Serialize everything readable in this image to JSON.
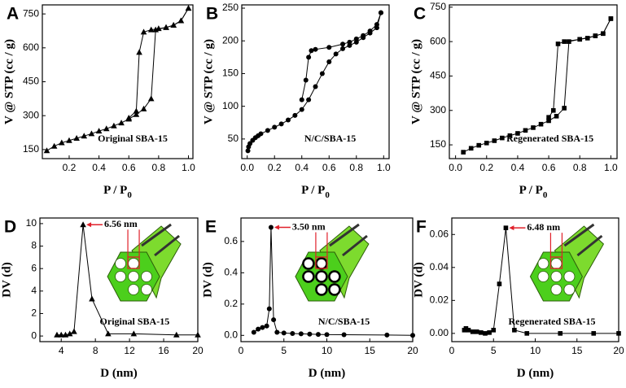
{
  "chart_data": [
    {
      "type": "line",
      "label": "A",
      "ylabel": "V @ STP (cc / g)",
      "xlabel": "P / P",
      "xlabel_sub": "0",
      "annotation": "Original SBA-15",
      "marker": "triangle",
      "xlim": [
        0.02,
        1.03
      ],
      "ylim": [
        110,
        790
      ],
      "xticks": [
        0.2,
        0.4,
        0.6,
        0.8,
        {
          "value": 1,
          "label": "1.0"
        }
      ],
      "yticks": [
        150,
        300,
        450,
        600,
        750
      ],
      "series": [
        {
          "color": "#000000",
          "x": [
            0.05,
            0.1,
            0.15,
            0.2,
            0.25,
            0.3,
            0.35,
            0.4,
            0.45,
            0.5,
            0.55,
            0.6,
            0.65,
            0.7,
            0.75,
            0.78,
            0.85,
            0.9,
            0.95,
            1.0
          ],
          "values": [
            145,
            165,
            180,
            190,
            200,
            210,
            220,
            232,
            242,
            255,
            268,
            285,
            305,
            330,
            375,
            680,
            690,
            700,
            720,
            775
          ]
        },
        {
          "color": "#000000",
          "x": [
            1.0,
            0.95,
            0.9,
            0.85,
            0.8,
            0.75,
            0.7,
            0.67,
            0.65,
            0.6
          ],
          "values": [
            775,
            720,
            700,
            690,
            685,
            680,
            670,
            580,
            320,
            290
          ]
        }
      ]
    },
    {
      "type": "line",
      "label": "B",
      "ylabel": "V @ STP (cc / g)",
      "xlabel": "P / P",
      "xlabel_sub": "0",
      "annotation": "N/C/SBA-15",
      "marker": "circle",
      "xlim": [
        -0.04,
        1.04
      ],
      "ylim": [
        20,
        255
      ],
      "xticks": [
        {
          "value": 0,
          "label": "0.0"
        },
        0.2,
        0.4,
        0.6,
        0.8,
        {
          "value": 1,
          "label": "1.0"
        }
      ],
      "yticks": [
        50,
        100,
        150,
        200,
        250
      ],
      "series": [
        {
          "color": "#000000",
          "x": [
            0.005,
            0.01,
            0.02,
            0.04,
            0.06,
            0.08,
            0.1,
            0.15,
            0.2,
            0.25,
            0.3,
            0.35,
            0.4,
            0.45,
            0.5,
            0.55,
            0.6,
            0.65,
            0.7,
            0.75,
            0.8,
            0.85,
            0.9,
            0.95,
            0.98
          ],
          "values": [
            32,
            38,
            43,
            48,
            52,
            55,
            58,
            63,
            68,
            73,
            79,
            86,
            95,
            110,
            130,
            150,
            168,
            180,
            188,
            193,
            198,
            205,
            212,
            220,
            243
          ]
        },
        {
          "color": "#000000",
          "x": [
            0.98,
            0.95,
            0.9,
            0.85,
            0.8,
            0.75,
            0.7,
            0.6,
            0.5,
            0.47,
            0.45,
            0.43,
            0.4
          ],
          "values": [
            243,
            225,
            215,
            208,
            203,
            198,
            195,
            190,
            187,
            185,
            175,
            140,
            110
          ]
        }
      ]
    },
    {
      "type": "line",
      "label": "C",
      "ylabel": "V @ STP (cc / g)",
      "xlabel": "P / P",
      "xlabel_sub": "0",
      "annotation": "Regenerated SBA-15",
      "marker": "square",
      "xlim": [
        -0.04,
        1.04
      ],
      "ylim": [
        90,
        760
      ],
      "xticks": [
        {
          "value": 0,
          "label": "0.0"
        },
        0.2,
        0.4,
        0.6,
        0.8,
        {
          "value": 1,
          "label": "1.0"
        }
      ],
      "yticks": [
        150,
        300,
        450,
        600,
        750
      ],
      "series": [
        {
          "color": "#000000",
          "x": [
            0.05,
            0.1,
            0.15,
            0.2,
            0.25,
            0.3,
            0.35,
            0.4,
            0.45,
            0.5,
            0.55,
            0.6,
            0.65,
            0.7,
            0.73,
            0.8,
            0.85,
            0.9,
            0.95,
            1.0
          ],
          "values": [
            118,
            135,
            148,
            158,
            168,
            180,
            190,
            200,
            213,
            225,
            240,
            255,
            275,
            310,
            600,
            610,
            615,
            625,
            635,
            700
          ]
        },
        {
          "color": "#000000",
          "x": [
            1.0,
            0.95,
            0.9,
            0.8,
            0.7,
            0.66,
            0.63,
            0.6
          ],
          "values": [
            700,
            635,
            625,
            610,
            600,
            590,
            300,
            270
          ]
        }
      ]
    },
    {
      "type": "line",
      "label": "D",
      "ylabel": "DV (d)",
      "xlabel": "D (nm)",
      "annotation": "Original SBA-15",
      "peak_label": "6.56 nm",
      "marker": "triangle",
      "xlim": [
        1.5,
        20
      ],
      "ylim": [
        -0.5,
        10.5
      ],
      "xticks": [
        4,
        8,
        12,
        16,
        20
      ],
      "yticks": [
        0,
        2,
        4,
        6,
        8,
        10
      ],
      "series": [
        {
          "color": "#000000",
          "x": [
            3.5,
            4,
            4.5,
            5,
            5.5,
            6.56,
            7.6,
            9.5,
            12.5,
            17.5,
            20
          ],
          "values": [
            0.1,
            0.1,
            0.1,
            0.2,
            0.4,
            9.9,
            3.3,
            0.2,
            0.2,
            0.1,
            0.1
          ]
        }
      ]
    },
    {
      "type": "line",
      "label": "E",
      "ylabel": "DV (d)",
      "xlabel": "D (nm)",
      "annotation": "N/C/SBA-15",
      "peak_label": "3.50 nm",
      "marker": "circle",
      "xlim": [
        0,
        20
      ],
      "ylim": [
        -0.04,
        0.75
      ],
      "xticks": [
        0,
        5,
        10,
        15,
        20
      ],
      "yticks": [
        {
          "value": 0,
          "label": "0.0"
        },
        0.2,
        0.4,
        0.6
      ],
      "series": [
        {
          "color": "#000000",
          "x": [
            1.5,
            2,
            2.5,
            3,
            3.3,
            3.5,
            3.8,
            4.2,
            5,
            6,
            7,
            8,
            9,
            10,
            12,
            17,
            20
          ],
          "values": [
            0.02,
            0.04,
            0.05,
            0.06,
            0.17,
            0.69,
            0.1,
            0.02,
            0.015,
            0.012,
            0.01,
            0.008,
            0.006,
            0.005,
            0.004,
            0.002,
            0
          ]
        }
      ]
    },
    {
      "type": "line",
      "label": "F",
      "ylabel": "DV (d)",
      "xlabel": "D (nm)",
      "annotation": "Regenerated SBA-15",
      "peak_label": "6.48 nm",
      "marker": "square",
      "xlim": [
        0,
        20
      ],
      "ylim": [
        -0.005,
        0.07
      ],
      "xticks": [
        0,
        5,
        10,
        15,
        20
      ],
      "yticks": [
        {
          "value": 0,
          "label": "0.00"
        },
        {
          "value": 0.02,
          "label": "0.02"
        },
        {
          "value": 0.04,
          "label": "0.04"
        },
        {
          "value": 0.06,
          "label": "0.06"
        }
      ],
      "series": [
        {
          "color": "#000000",
          "x": [
            1.5,
            1.7,
            2,
            2.5,
            3,
            3.5,
            4,
            4.5,
            5,
            5.7,
            6.48,
            7.5,
            9,
            13,
            17,
            20
          ],
          "values": [
            0.002,
            0.003,
            0.002,
            0.001,
            0.001,
            0.0005,
            0,
            0.0005,
            0.002,
            0.03,
            0.064,
            0.002,
            0,
            0,
            0,
            0
          ]
        }
      ]
    }
  ]
}
